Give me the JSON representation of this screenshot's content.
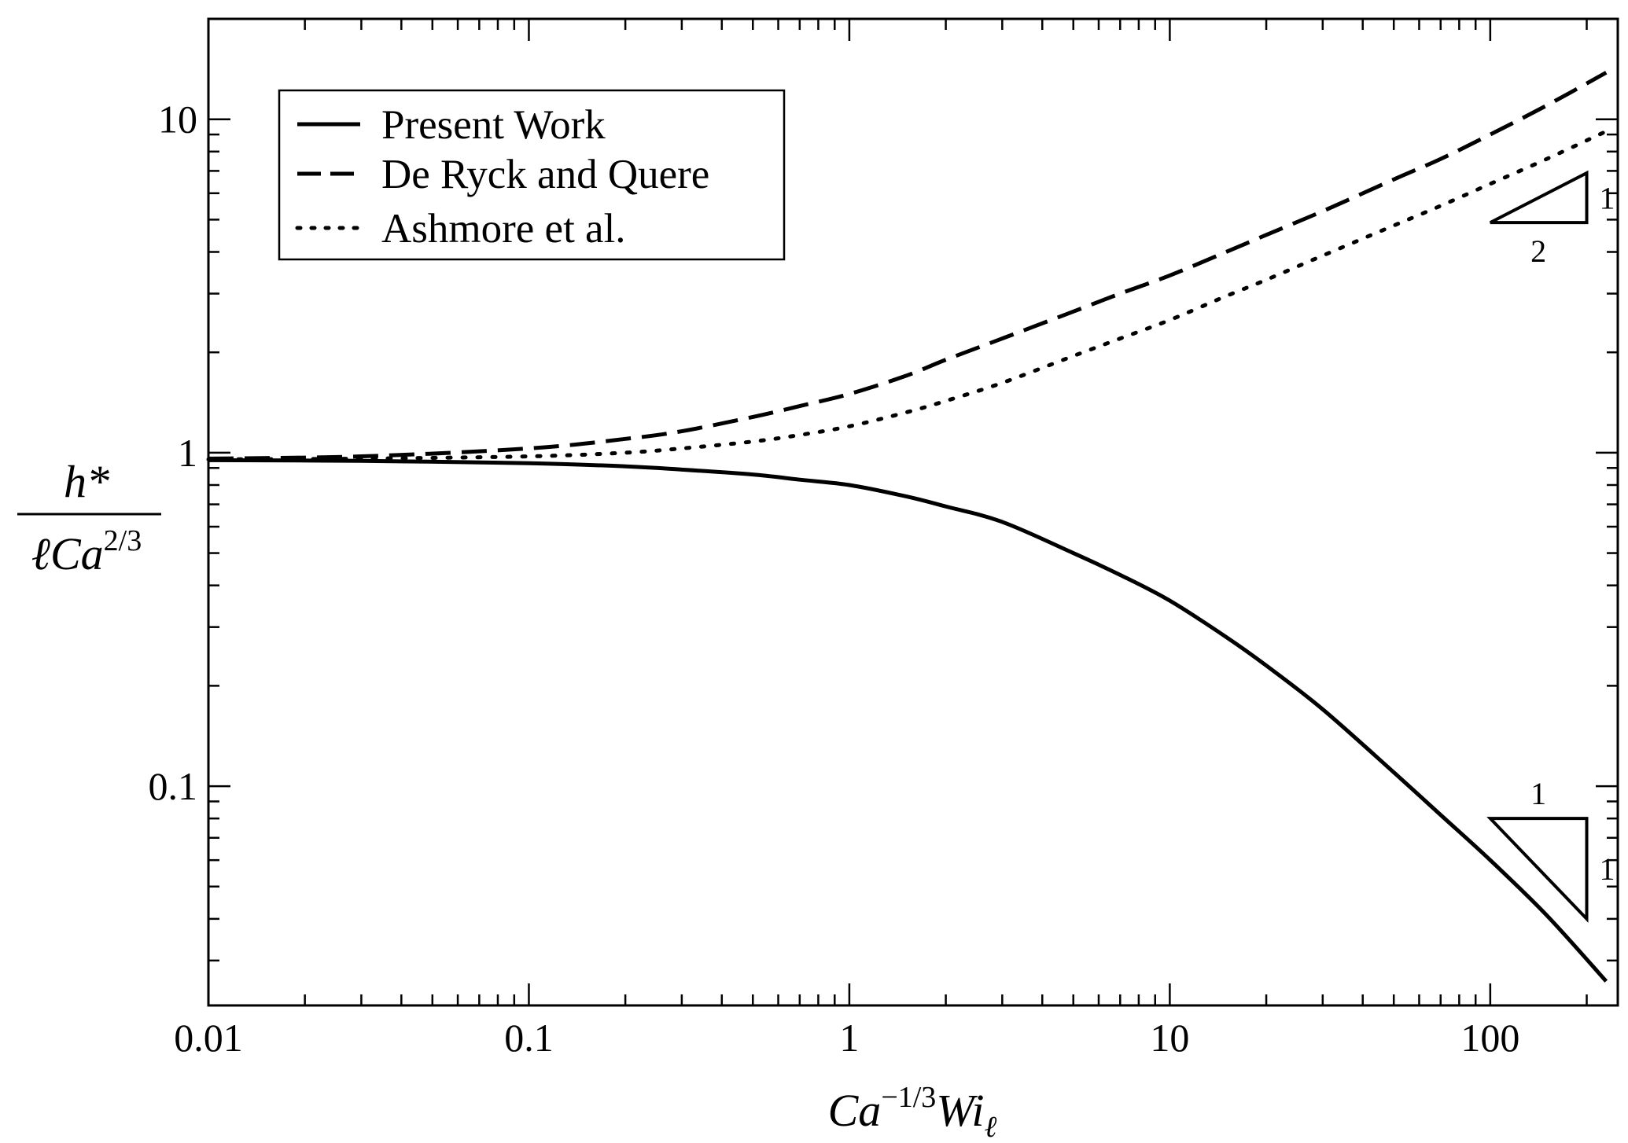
{
  "chart_data": {
    "type": "line",
    "xscale": "log",
    "yscale": "log",
    "xlim": [
      0.01,
      250
    ],
    "ylim": [
      0.022,
      20
    ],
    "x_ticks": [
      {
        "value": 0.01,
        "label": "0.01"
      },
      {
        "value": 0.1,
        "label": "0.1"
      },
      {
        "value": 1,
        "label": "1"
      },
      {
        "value": 10,
        "label": "10"
      },
      {
        "value": 100,
        "label": "100"
      }
    ],
    "y_ticks": [
      {
        "value": 0.1,
        "label": "0.1"
      },
      {
        "value": 1,
        "label": "1"
      },
      {
        "value": 10,
        "label": "10"
      }
    ],
    "xlabel": {
      "base": "Ca",
      "sup": "−1/3",
      "mid": "Wi",
      "sub": "ℓ"
    },
    "ylabel": {
      "numerator": "h*",
      "den_base": "ℓCa",
      "den_sup": "2/3"
    },
    "grid": false,
    "legend_position": "top-left",
    "series": [
      {
        "name": "Present Work",
        "style": "solid",
        "x": [
          0.01,
          0.03,
          0.1,
          0.2,
          0.3,
          0.5,
          0.7,
          1,
          1.5,
          2,
          3,
          5,
          7,
          10,
          15,
          20,
          30,
          50,
          70,
          100,
          150,
          230
        ],
        "y": [
          0.95,
          0.945,
          0.93,
          0.91,
          0.89,
          0.86,
          0.83,
          0.8,
          0.74,
          0.69,
          0.62,
          0.5,
          0.43,
          0.36,
          0.28,
          0.23,
          0.17,
          0.11,
          0.082,
          0.06,
          0.041,
          0.026
        ]
      },
      {
        "name": "De Ryck and Quere",
        "style": "dashed",
        "x": [
          0.01,
          0.03,
          0.1,
          0.2,
          0.3,
          0.5,
          0.7,
          1,
          1.5,
          2,
          3,
          5,
          7,
          10,
          15,
          20,
          30,
          50,
          70,
          100,
          150,
          230
        ],
        "y": [
          0.96,
          0.975,
          1.03,
          1.1,
          1.16,
          1.28,
          1.38,
          1.5,
          1.7,
          1.9,
          2.2,
          2.65,
          3.0,
          3.4,
          4.0,
          4.5,
          5.3,
          6.6,
          7.6,
          9.0,
          11.0,
          13.8
        ]
      },
      {
        "name": "Ashmore et al.",
        "style": "dotted",
        "x": [
          0.01,
          0.03,
          0.1,
          0.2,
          0.3,
          0.5,
          0.7,
          1,
          1.5,
          2,
          3,
          5,
          7,
          10,
          15,
          20,
          30,
          50,
          70,
          100,
          150,
          230
        ],
        "y": [
          0.955,
          0.96,
          0.975,
          1.0,
          1.03,
          1.08,
          1.13,
          1.2,
          1.32,
          1.43,
          1.62,
          1.95,
          2.2,
          2.5,
          2.95,
          3.3,
          3.9,
          4.8,
          5.5,
          6.4,
          7.6,
          9.2
        ]
      }
    ],
    "annotations": [
      {
        "type": "slope-triangle",
        "run": 2,
        "rise": 1,
        "run_label": "2",
        "rise_label": "1",
        "x_range": [
          100,
          200
        ],
        "y_range": [
          4.9,
          6.9
        ]
      },
      {
        "type": "slope-triangle",
        "run": 1,
        "rise": 1,
        "run_label": "1",
        "rise_label": "1",
        "x_range": [
          100,
          200
        ],
        "y_range": [
          0.04,
          0.08
        ]
      }
    ]
  }
}
